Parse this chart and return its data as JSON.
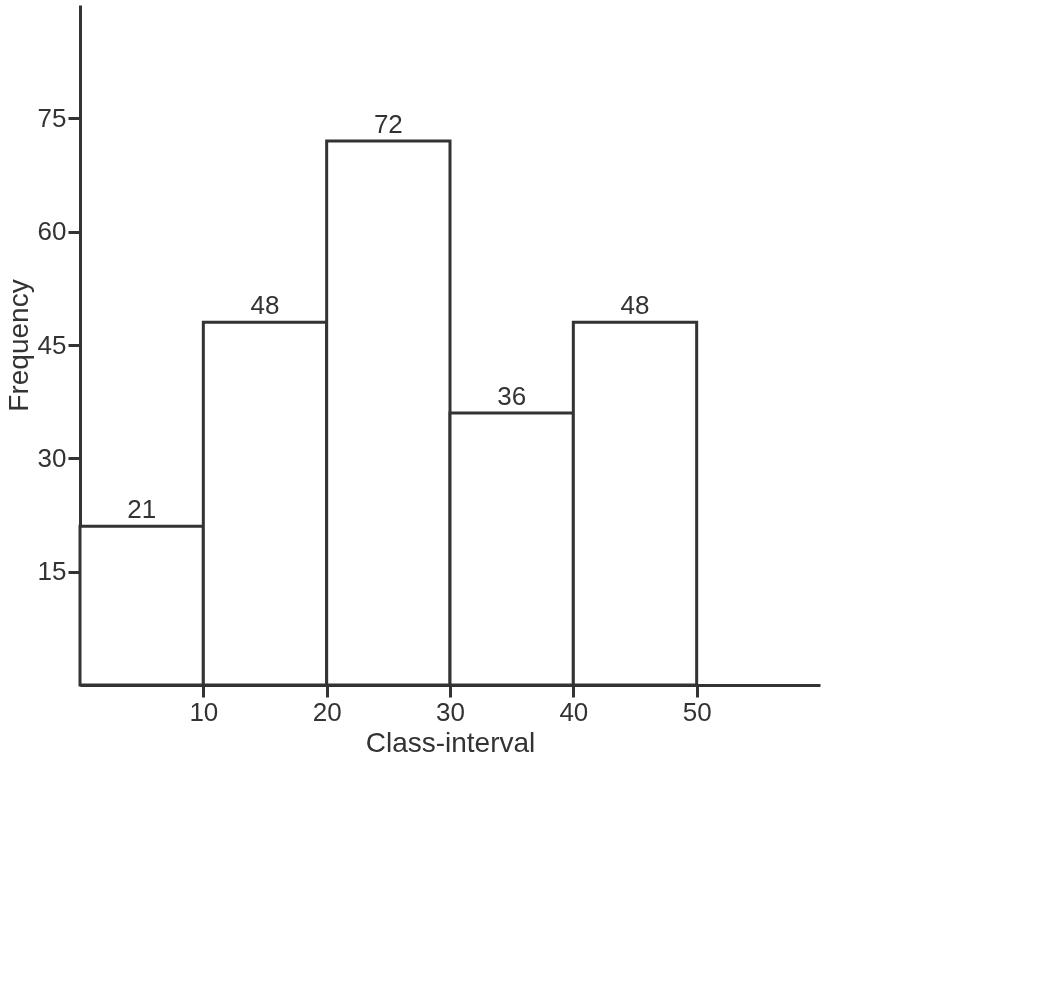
{
  "chart_data": {
    "type": "histogram",
    "xlabel": "Class-interval",
    "ylabel": "Frequency",
    "bins": [
      0,
      10,
      20,
      30,
      40,
      50
    ],
    "values": [
      21,
      48,
      72,
      36,
      48
    ],
    "xlim": [
      0,
      60
    ],
    "xticks": [
      10,
      20,
      30,
      40,
      50
    ],
    "ylim": [
      0,
      90
    ],
    "yticks": [
      15,
      30,
      45,
      60,
      75
    ],
    "data_labels": true,
    "grid": false,
    "color": "#ffffff"
  }
}
